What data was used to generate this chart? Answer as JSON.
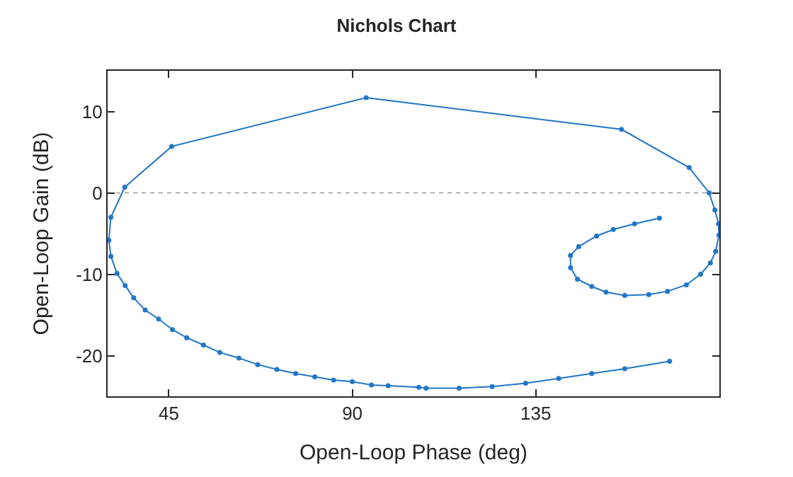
{
  "chart_data": {
    "type": "line",
    "title": "Nichols Chart",
    "xlabel": "Open-Loop Phase (deg)",
    "ylabel": "Open-Loop Gain (dB)",
    "xlim": [
      30,
      180
    ],
    "xticks": [
      45,
      90,
      135
    ],
    "ylim": [
      -25,
      15
    ],
    "yticks": [
      -20,
      -10,
      0,
      10
    ],
    "grid": false,
    "marker": "circle",
    "line_style": "solid",
    "ref_lines": [
      {
        "axis": "y",
        "value": 0,
        "label": null,
        "color": "#999999",
        "line_style": "dotted"
      }
    ],
    "series": [
      {
        "color": "#2176c7",
        "x": [
          165.3,
          159.2,
          154.0,
          149.9,
          145.5,
          143.5,
          143.5,
          145.2,
          148.7,
          152.2,
          156.8,
          162.7,
          167.3,
          171.9,
          175.4,
          177.8,
          179.1,
          179.9,
          179.8,
          178.9,
          177.5,
          172.6,
          156.0,
          93.4,
          45.7,
          34.2,
          30.8,
          30.3,
          30.8,
          32.3,
          34.3,
          36.4,
          39.2,
          42.5,
          45.9,
          49.4,
          53.5,
          57.5,
          62.2,
          66.8,
          71.5,
          76.1,
          80.8,
          85.4,
          90.0,
          94.7,
          98.8,
          106.3,
          108.1,
          116.2,
          124.3,
          132.5,
          140.6,
          148.7,
          156.8,
          167.8
        ],
        "values": [
          -3.1,
          -3.8,
          -4.5,
          -5.3,
          -6.6,
          -7.7,
          -9.2,
          -10.6,
          -11.5,
          -12.2,
          -12.6,
          -12.5,
          -12.1,
          -11.3,
          -10.0,
          -8.6,
          -7.2,
          -5.2,
          -3.8,
          -2.1,
          0.0,
          3.1,
          7.8,
          11.7,
          5.7,
          0.7,
          -3.0,
          -5.8,
          -7.8,
          -9.9,
          -11.4,
          -12.9,
          -14.4,
          -15.5,
          -16.8,
          -17.8,
          -18.7,
          -19.6,
          -20.3,
          -21.1,
          -21.7,
          -22.2,
          -22.6,
          -23.0,
          -23.2,
          -23.6,
          -23.7,
          -23.9,
          -24.0,
          -24.0,
          -23.8,
          -23.4,
          -22.8,
          -22.2,
          -21.6,
          -20.7
        ]
      }
    ]
  }
}
